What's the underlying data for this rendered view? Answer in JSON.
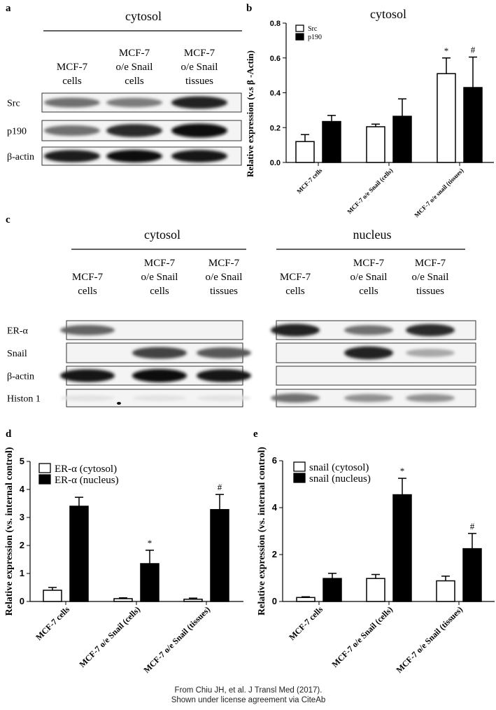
{
  "panel_a": {
    "label": "a",
    "title": "cytosol",
    "headers": [
      [
        "MCF-7",
        "cells"
      ],
      [
        "MCF-7",
        "o/e Snail",
        "cells"
      ],
      [
        "MCF-7",
        "o/e Snail",
        "tissues"
      ]
    ],
    "rows": [
      {
        "label": "Src",
        "bands": [
          0.55,
          0.5,
          0.9
        ]
      },
      {
        "label": "p190",
        "bands": [
          0.55,
          0.85,
          0.97
        ]
      },
      {
        "label": "β-actin",
        "bands": [
          0.92,
          0.97,
          0.95
        ]
      }
    ]
  },
  "panel_c": {
    "label": "c",
    "cytosol": {
      "title": "cytosol",
      "headers": [
        [
          "MCF-7",
          "cells"
        ],
        [
          "MCF-7",
          "o/e Snail",
          "cells"
        ],
        [
          "MCF-7",
          "o/e Snail",
          "tissues"
        ]
      ],
      "bands": [
        [
          0.6,
          0,
          0
        ],
        [
          0,
          0.75,
          0.65
        ],
        [
          0.95,
          1,
          0.95
        ],
        [
          0.04,
          0.04,
          0.04
        ]
      ]
    },
    "nucleus": {
      "title": "nucleus",
      "headers": [
        [
          "MCF-7",
          "cells"
        ],
        [
          "MCF-7",
          "o/e Snail",
          "cells"
        ],
        [
          "MCF-7",
          "o/e Snail",
          "tissues"
        ]
      ],
      "bands": [
        [
          0.9,
          0.55,
          0.85
        ],
        [
          0,
          0.9,
          0.3
        ],
        [
          0,
          0,
          0
        ],
        [
          0.55,
          0.4,
          0.4
        ]
      ]
    },
    "row_labels": [
      "ER-α",
      "Snail",
      "β-actin",
      "Histon 1"
    ]
  },
  "chart_data": [
    {
      "panel": "b",
      "type": "bar",
      "title": "cytosol",
      "ylabel": "Relative expression (v.s β -Actin)",
      "xlabel": "",
      "ylim": [
        0,
        0.8
      ],
      "yticks": [
        "0.0",
        "0.2",
        "0.4",
        "0.6",
        "0.8"
      ],
      "categories": [
        "MCF-7 cells",
        "MCF-7 o/e Snail (cells)",
        "MCF-7 o/e snail (tissues)"
      ],
      "legend_position": "top-left",
      "series": [
        {
          "name": "Src",
          "fill": "#ffffff",
          "values": [
            0.12,
            0.205,
            0.51
          ],
          "error_upper": [
            0.16,
            0.22,
            0.6
          ],
          "annotations": [
            "",
            "",
            "*"
          ]
        },
        {
          "name": "p190",
          "fill": "#000000",
          "values": [
            0.235,
            0.265,
            0.43
          ],
          "error_upper": [
            0.27,
            0.365,
            0.605
          ],
          "annotations": [
            "",
            "",
            "#"
          ]
        }
      ]
    },
    {
      "panel": "d",
      "type": "bar",
      "title": "",
      "ylabel": "Relative expression (vs. internal control)",
      "xlabel": "",
      "ylim": [
        0,
        5
      ],
      "yticks": [
        "0",
        "1",
        "2",
        "3",
        "4",
        "5"
      ],
      "categories": [
        "MCF-7 cells",
        "MCF-7 o/e Snail (cells)",
        "MCF-7 o/e Snail (tissues)"
      ],
      "legend_position": "top-left",
      "series": [
        {
          "name": "ER-α (cytosol)",
          "fill": "#ffffff",
          "values": [
            0.4,
            0.1,
            0.08
          ],
          "error_upper": [
            0.5,
            0.13,
            0.12
          ],
          "annotations": [
            "",
            "",
            ""
          ]
        },
        {
          "name": "ER-α (nucleus)",
          "fill": "#000000",
          "values": [
            3.4,
            1.35,
            3.28
          ],
          "error_upper": [
            3.72,
            1.83,
            3.82
          ],
          "annotations": [
            "",
            "*",
            "#"
          ]
        }
      ]
    },
    {
      "panel": "e",
      "type": "bar",
      "title": "",
      "ylabel": "Relative expression (vs. internal control)",
      "xlabel": "",
      "ylim": [
        0,
        6
      ],
      "yticks": [
        "0",
        "2",
        "4",
        "6"
      ],
      "categories": [
        "MCF-7 cells",
        "MCF-7 o/e Snail (cells)",
        "MCF-7 o/e Snail (tissues)"
      ],
      "legend_position": "top-left",
      "series": [
        {
          "name": "snail (cytosol)",
          "fill": "#ffffff",
          "values": [
            0.17,
            0.98,
            0.88
          ],
          "error_upper": [
            0.2,
            1.15,
            1.08
          ],
          "annotations": [
            "",
            "",
            ""
          ]
        },
        {
          "name": "snail (nucleus)",
          "fill": "#000000",
          "values": [
            0.98,
            4.55,
            2.25
          ],
          "error_upper": [
            1.2,
            5.25,
            2.9
          ],
          "annotations": [
            "",
            "*",
            "#"
          ]
        }
      ]
    }
  ],
  "footer": {
    "line1": "From Chiu JH, et al. J Transl Med (2017).",
    "line2": "Shown under license agreement via CiteAb"
  }
}
